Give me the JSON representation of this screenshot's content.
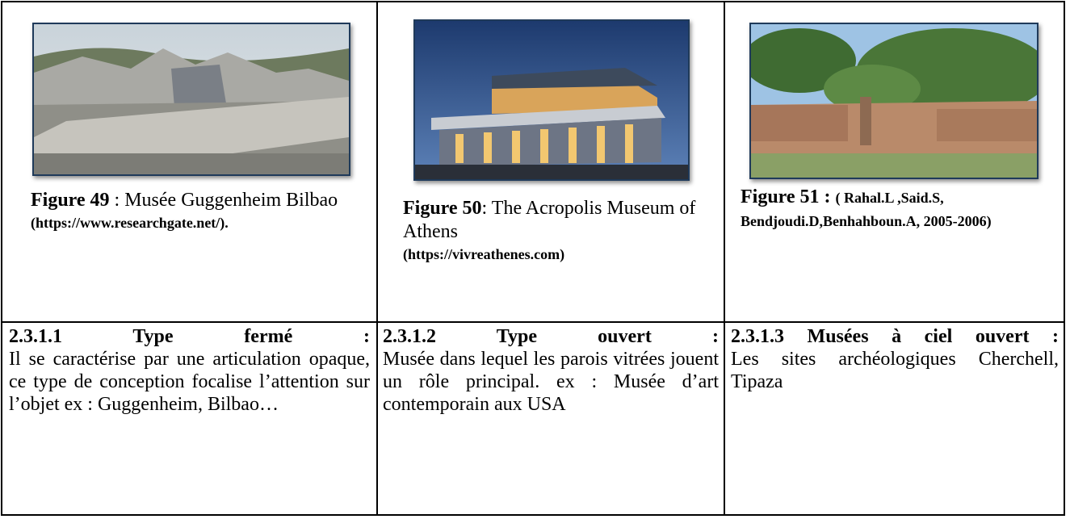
{
  "table": {
    "rows": [
      [
        {
          "figure": "Figure 49",
          "caption": ": Musée Guggenheim Bilbao",
          "source": "(https://www.researchgate.net/)."
        },
        {
          "figure": "Figure 50",
          "caption": ": The Acropolis Museum of Athens",
          "source": "(https://vivreathenes.com)"
        },
        {
          "figure": "Figure 51 :",
          "source": "( Rahal.L ,Said.S, Bendjoudi.D,Benhahboun.A, 2005-2006)"
        }
      ],
      [
        {
          "heading": "2.3.1.1 Type fermé :",
          "body": "Il se caractérise par une articulation opaque, ce type de conception focalise l’attention sur l’objet ex : Guggenheim, Bilbao…"
        },
        {
          "heading": "2.3.1.2 Type ouvert :",
          "body": "Musée dans lequel les parois vitrées jouent un rôle principal. ex : Musée d’art contemporain aux USA"
        },
        {
          "heading": "2.3.1.3 Musées à ciel ouvert :",
          "body": "Les sites archéologiques Cherchell, Tipaza"
        }
      ]
    ]
  }
}
